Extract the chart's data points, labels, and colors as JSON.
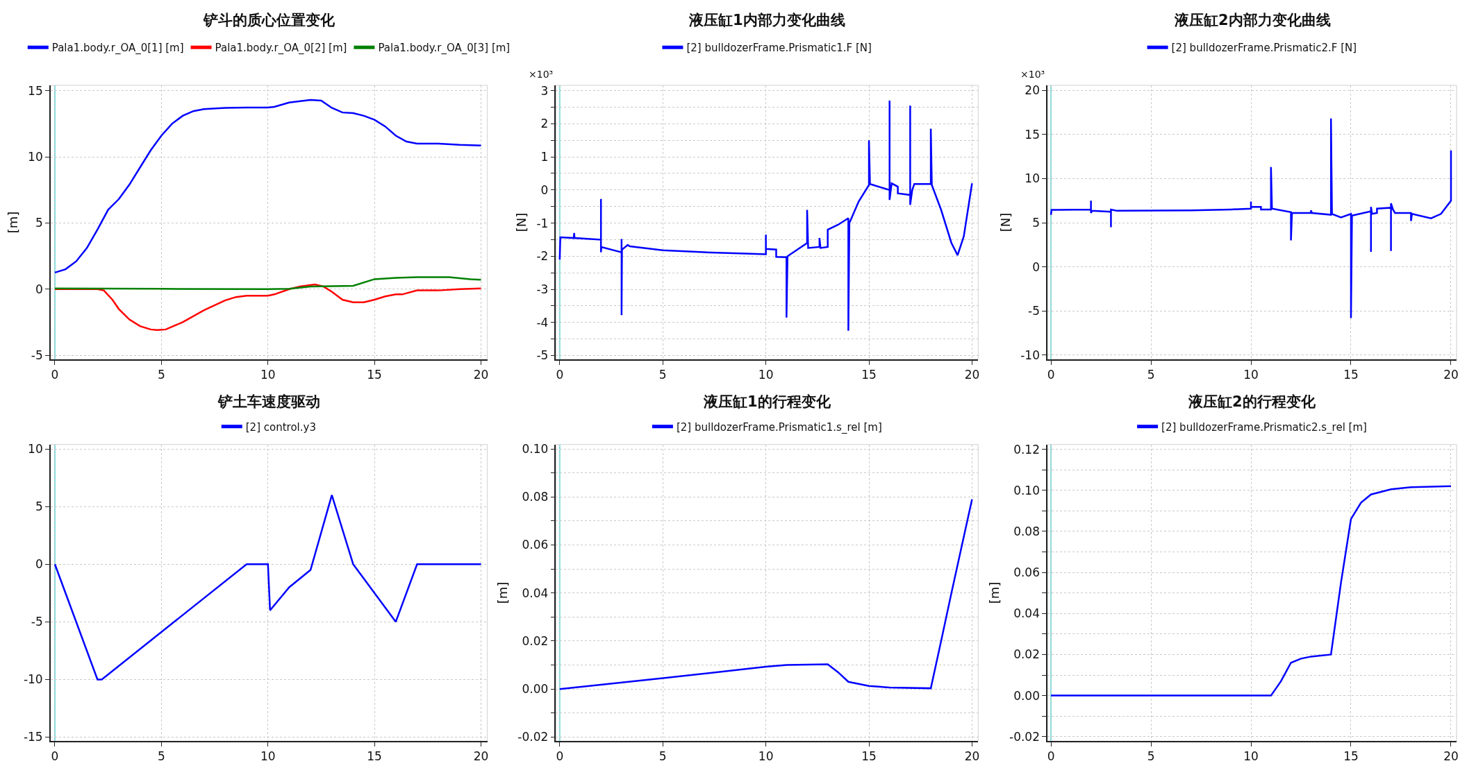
{
  "chart_data": [
    {
      "type": "line",
      "title": "铲斗的质心位置变化",
      "ylabel": "[m]",
      "legend": "top",
      "grid": true,
      "marker": "none",
      "line_style": "solid",
      "xlim": [
        -0.2,
        20.3
      ],
      "ylim": [
        -5.3,
        15.4
      ],
      "xticks": [
        0,
        5,
        10,
        15,
        20
      ],
      "yticks": [
        -5,
        0,
        5,
        10,
        15
      ],
      "ref_lines": [
        {
          "axis": "x",
          "value": 0,
          "color": "#7fdede"
        }
      ],
      "series": [
        {
          "name": "Pala1.body.r_OA_0[1] [m]",
          "color": "#0000ff",
          "x": [
            0,
            0.5,
            1,
            1.5,
            2,
            2.5,
            3,
            3.5,
            4,
            4.5,
            5,
            5.5,
            6,
            6.5,
            7,
            8,
            9,
            10,
            10.3,
            11,
            12,
            12.5,
            13,
            13.5,
            14,
            14.5,
            15,
            15.5,
            16,
            16.5,
            17,
            18,
            19,
            20
          ],
          "values": [
            1.25,
            1.5,
            2.1,
            3.1,
            4.5,
            6,
            6.8,
            7.9,
            9.2,
            10.5,
            11.6,
            12.5,
            13.1,
            13.45,
            13.6,
            13.7,
            13.72,
            13.72,
            13.78,
            14.1,
            14.3,
            14.25,
            13.7,
            13.35,
            13.3,
            13.1,
            12.8,
            12.3,
            11.6,
            11.15,
            11.0,
            11.0,
            10.9,
            10.85
          ]
        },
        {
          "name": "Pala1.body.r_OA_0[2] [m]",
          "color": "#ff0000",
          "x": [
            0,
            2,
            2.3,
            2.7,
            3,
            3.5,
            4,
            4.5,
            4.8,
            5.2,
            6,
            7,
            8,
            8.5,
            9,
            10,
            10.3,
            11,
            11.5,
            12.2,
            12.6,
            13,
            13.5,
            14,
            14.5,
            15,
            15.5,
            16,
            16.3,
            17,
            18,
            19,
            20
          ],
          "values": [
            0,
            0,
            -0.1,
            -0.8,
            -1.5,
            -2.3,
            -2.8,
            -3.05,
            -3.1,
            -3.05,
            -2.5,
            -1.6,
            -0.85,
            -0.6,
            -0.5,
            -0.5,
            -0.4,
            0,
            0.2,
            0.35,
            0.2,
            -0.2,
            -0.8,
            -1.0,
            -1.0,
            -0.8,
            -0.55,
            -0.4,
            -0.4,
            -0.1,
            -0.1,
            0,
            0.05
          ]
        },
        {
          "name": "Pala1.body.r_OA_0[3] [m]",
          "color": "#008000",
          "x": [
            0,
            5,
            10,
            11,
            12,
            14,
            15,
            16,
            17,
            18.5,
            19.5,
            20
          ],
          "values": [
            0.05,
            0.02,
            0,
            0.02,
            0.2,
            0.25,
            0.75,
            0.85,
            0.9,
            0.9,
            0.75,
            0.7
          ]
        }
      ]
    },
    {
      "type": "line",
      "title": "液压缸1内部力变化曲线",
      "ylabel": "[N]",
      "annotations": [
        "×10³"
      ],
      "legend": "top",
      "grid": true,
      "marker": "none",
      "line_style": "solid",
      "xlim": [
        -0.18,
        20.3
      ],
      "ylim": [
        -5.11,
        3.16
      ],
      "xticks": [
        0,
        5,
        10,
        15,
        20
      ],
      "yticks": [
        -5,
        {
          "value": -4.5,
          "label": null
        },
        -4,
        {
          "value": -3.5,
          "label": null
        },
        -3,
        {
          "value": -2.5,
          "label": null
        },
        -2,
        {
          "value": -1.5,
          "label": null
        },
        -1,
        {
          "value": -0.5,
          "label": null
        },
        0,
        {
          "value": 0.5,
          "label": null
        },
        1,
        {
          "value": 1.5,
          "label": null
        },
        2,
        {
          "value": 2.5,
          "label": null
        },
        3
      ],
      "ref_lines": [
        {
          "axis": "x",
          "value": 0,
          "color": "#7fdede"
        }
      ],
      "series": [
        {
          "name": "[2] bulldozerFrame.Prismatic1.F [N]",
          "color": "#0000ff",
          "x": [
            0,
            0.03,
            0.68,
            0.7,
            0.72,
            2,
            2,
            2,
            2.02,
            3,
            3,
            3,
            3.02,
            3.3,
            3.4,
            5,
            7,
            9,
            10,
            10,
            10,
            10.5,
            10.5,
            11,
            11,
            11.05,
            12,
            12,
            12.05,
            12.6,
            12.6,
            12.65,
            13,
            13,
            13.5,
            14,
            14,
            14.05,
            14.5,
            15,
            15,
            15.05,
            16,
            16,
            16,
            16.1,
            16.4,
            16.4,
            17,
            17,
            17,
            17.1,
            17.2,
            18,
            18,
            18.05,
            18.5,
            19,
            19.3,
            19.6,
            20
          ],
          "values": [
            -2.1,
            -1.43,
            -1.45,
            -1.3,
            -1.45,
            -1.5,
            -0.27,
            -1.88,
            -1.72,
            -1.88,
            -1.48,
            -3.78,
            -1.8,
            -1.66,
            -1.7,
            -1.82,
            -1.88,
            -1.92,
            -1.94,
            -1.35,
            -1.78,
            -1.8,
            -2.02,
            -2.03,
            -3.85,
            -2.0,
            -1.6,
            -0.6,
            -1.75,
            -1.72,
            -1.45,
            -1.75,
            -1.72,
            -1.2,
            -1.05,
            -0.85,
            -4.25,
            -1.0,
            -0.35,
            0.15,
            1.5,
            0.18,
            0.0,
            2.7,
            -0.3,
            0.2,
            0.1,
            -0.1,
            -0.15,
            2.55,
            -0.45,
            0.0,
            0.18,
            0.18,
            1.85,
            0.15,
            -0.6,
            -1.6,
            -1.97,
            -1.4,
            0.2
          ]
        }
      ]
    },
    {
      "type": "line",
      "title": "液压缸2内部力变化曲线",
      "ylabel": "[N]",
      "annotations": [
        "×10³"
      ],
      "legend": "top",
      "grid": true,
      "marker": "none",
      "line_style": "solid",
      "xlim": [
        -0.17,
        20.28
      ],
      "ylim": [
        -10.46,
        20.56
      ],
      "xticks": [
        0,
        5,
        10,
        15,
        20
      ],
      "yticks": [
        -10,
        -5,
        0,
        5,
        10,
        15,
        20
      ],
      "ref_lines": [
        {
          "axis": "x",
          "value": 0,
          "color": "#7fdede"
        }
      ],
      "series": [
        {
          "name": "[2] bulldozerFrame.Prismatic2.F [N]",
          "color": "#0000ff",
          "x": [
            0,
            0.03,
            2,
            2,
            2,
            2.05,
            3,
            3,
            3,
            3.3,
            7,
            9,
            10,
            10,
            10,
            10.5,
            10.5,
            11,
            11,
            11.05,
            12,
            12,
            12.05,
            13,
            13,
            13.05,
            14,
            14,
            14.05,
            14.5,
            15,
            15,
            15.05,
            16,
            16,
            16,
            16.05,
            16.3,
            16.3,
            17,
            17,
            17,
            17.1,
            17.2,
            18,
            18,
            18.05,
            19,
            19.5,
            20,
            20
          ],
          "values": [
            5.9,
            6.45,
            6.5,
            7.5,
            6.1,
            6.35,
            6.25,
            4.5,
            6.5,
            6.35,
            6.4,
            6.5,
            6.6,
            7.4,
            6.8,
            6.8,
            6.5,
            6.5,
            11.3,
            6.6,
            6.2,
            3.0,
            6.1,
            6.1,
            6.4,
            6.1,
            5.9,
            16.8,
            6.0,
            5.6,
            6.0,
            -5.8,
            5.8,
            6.3,
            1.7,
            6.8,
            6.0,
            6.1,
            6.6,
            6.7,
            1.8,
            7.2,
            6.5,
            6.1,
            6.1,
            5.2,
            6.0,
            5.5,
            6.0,
            7.5,
            13.2
          ]
        }
      ]
    },
    {
      "type": "line",
      "title": "铲土车速度驱动",
      "legend": "top",
      "grid": true,
      "marker": "none",
      "line_style": "solid",
      "xlim": [
        -0.2,
        20.3
      ],
      "ylim": [
        -15.35,
        10.38
      ],
      "xticks": [
        0,
        5,
        10,
        15,
        20
      ],
      "yticks": [
        -15,
        -10,
        -5,
        0,
        5,
        10
      ],
      "ref_lines": [
        {
          "axis": "x",
          "value": 0,
          "color": "#7fdede"
        }
      ],
      "series": [
        {
          "name": "[2] control.y3",
          "color": "#0000ff",
          "x": [
            0,
            2,
            2.2,
            9,
            10,
            10.1,
            11,
            12,
            13,
            14,
            16,
            17,
            20
          ],
          "values": [
            0,
            -10,
            -10,
            0,
            0,
            -4,
            -2,
            -0.5,
            6,
            0,
            -5,
            0,
            0
          ]
        }
      ]
    },
    {
      "type": "line",
      "title": "液压缸1的行程变化",
      "ylabel": "[m]",
      "legend": "top",
      "grid": true,
      "marker": "none",
      "line_style": "solid",
      "xlim": [
        -0.18,
        20.3
      ],
      "ylim": [
        -0.0217,
        0.1018
      ],
      "xticks": [
        0,
        5,
        10,
        15,
        20
      ],
      "yticks": [
        {
          "value": -0.02,
          "label": "-0.02"
        },
        {
          "value": -0.01,
          "label": null
        },
        {
          "value": 0,
          "label": "0.00"
        },
        {
          "value": 0.01,
          "label": null
        },
        {
          "value": 0.02,
          "label": "0.02"
        },
        {
          "value": 0.03,
          "label": null
        },
        {
          "value": 0.04,
          "label": "0.04"
        },
        {
          "value": 0.05,
          "label": null
        },
        {
          "value": 0.06,
          "label": "0.06"
        },
        {
          "value": 0.07,
          "label": null
        },
        {
          "value": 0.08,
          "label": "0.08"
        },
        {
          "value": 0.09,
          "label": null
        },
        {
          "value": 0.1,
          "label": "0.10"
        }
      ],
      "ref_lines": [
        {
          "axis": "x",
          "value": 0,
          "color": "#7fdede"
        }
      ],
      "series": [
        {
          "name": "[2] bulldozerFrame.Prismatic1.s_rel [m]",
          "color": "#0000ff",
          "x": [
            0,
            5,
            10,
            11,
            13,
            13.5,
            14,
            15,
            16,
            18,
            18.5,
            19,
            20
          ],
          "values": [
            0,
            0.0045,
            0.0093,
            0.01,
            0.0103,
            0.007,
            0.003,
            0.0013,
            0.0006,
            0.0003,
            0.02,
            0.04,
            0.079
          ]
        }
      ]
    },
    {
      "type": "line",
      "title": "液压缸2的行程变化",
      "ylabel": "[m]",
      "legend": "top",
      "grid": true,
      "marker": "none",
      "line_style": "solid",
      "xlim": [
        -0.17,
        20.28
      ],
      "ylim": [
        -0.0222,
        0.1223
      ],
      "xticks": [
        0,
        5,
        10,
        15,
        20
      ],
      "yticks": [
        {
          "value": -0.02,
          "label": "-0.02"
        },
        {
          "value": -0.01,
          "label": null
        },
        {
          "value": 0,
          "label": "0.00"
        },
        {
          "value": 0.01,
          "label": null
        },
        {
          "value": 0.02,
          "label": "0.02"
        },
        {
          "value": 0.03,
          "label": null
        },
        {
          "value": 0.04,
          "label": "0.04"
        },
        {
          "value": 0.05,
          "label": null
        },
        {
          "value": 0.06,
          "label": "0.06"
        },
        {
          "value": 0.07,
          "label": null
        },
        {
          "value": 0.08,
          "label": "0.08"
        },
        {
          "value": 0.09,
          "label": null
        },
        {
          "value": 0.1,
          "label": "0.10"
        },
        {
          "value": 0.11,
          "label": null
        },
        {
          "value": 0.12,
          "label": "0.12"
        }
      ],
      "ref_lines": [
        {
          "axis": "x",
          "value": 0,
          "color": "#7fdede"
        }
      ],
      "series": [
        {
          "name": "[2] bulldozerFrame.Prismatic2.s_rel [m]",
          "color": "#0000ff",
          "x": [
            0,
            11,
            11.5,
            12,
            12.5,
            13,
            14,
            14.5,
            15,
            15.5,
            16,
            17,
            18,
            20
          ],
          "values": [
            0,
            0,
            0.007,
            0.016,
            0.018,
            0.019,
            0.02,
            0.055,
            0.086,
            0.094,
            0.098,
            0.1005,
            0.1015,
            0.102
          ]
        }
      ]
    }
  ]
}
